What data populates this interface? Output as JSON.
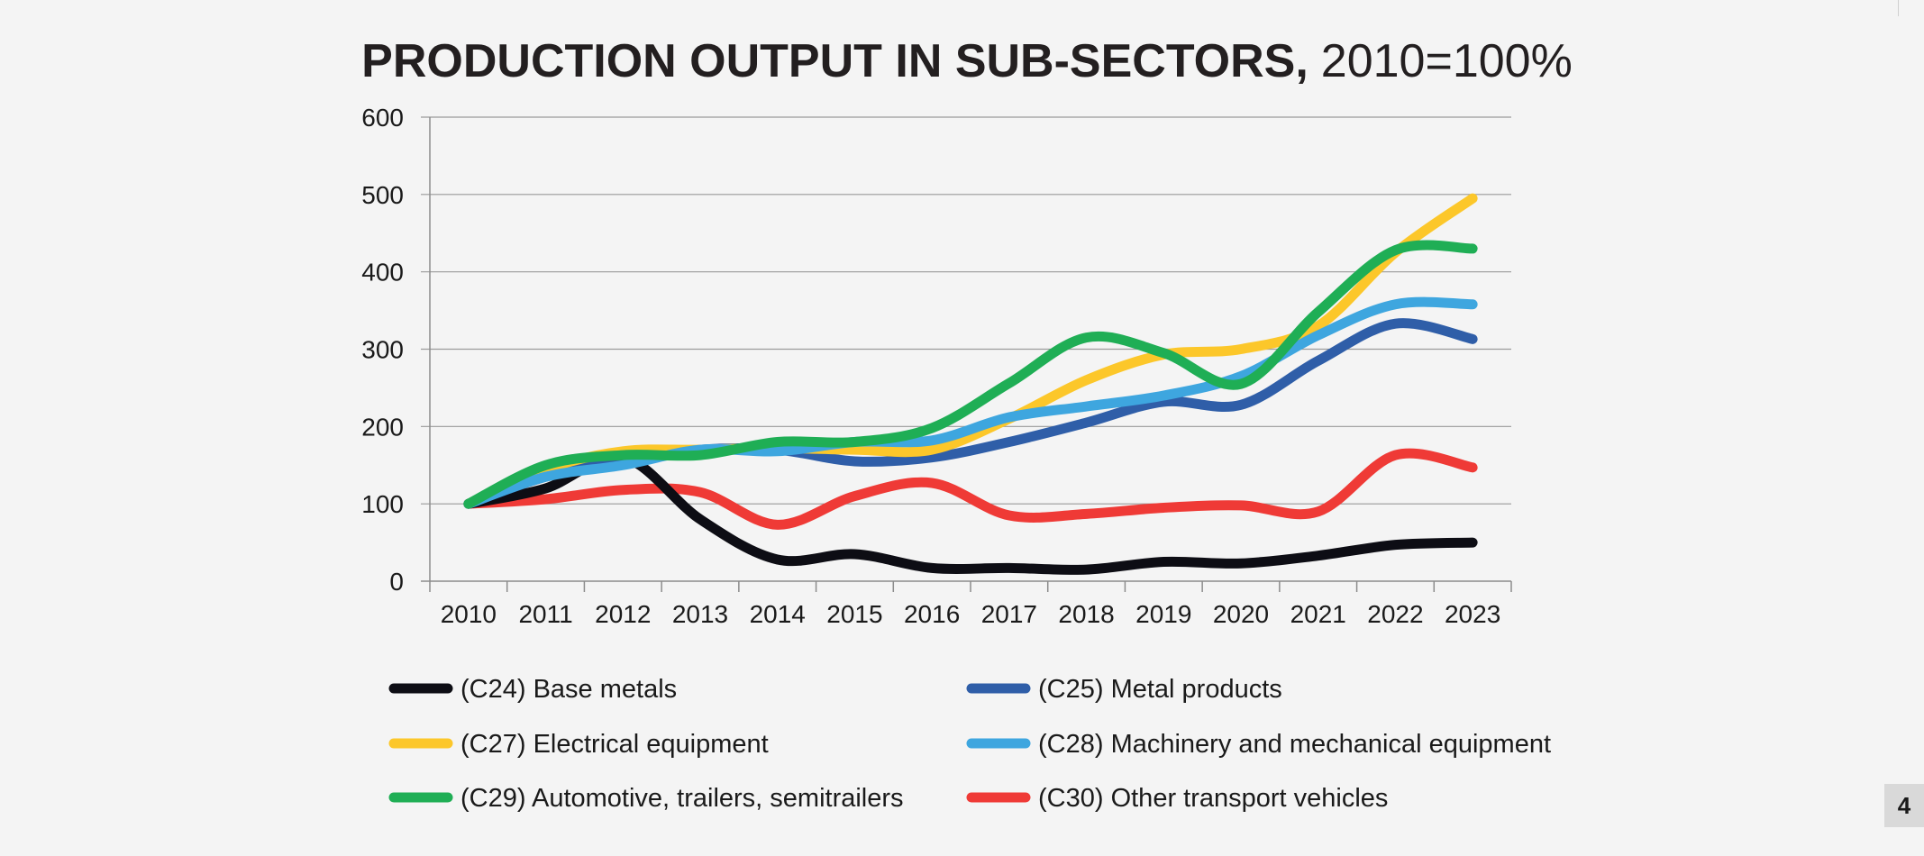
{
  "colors": {
    "background": "#f4f4f4",
    "grid": "#9a9a9a",
    "axis": "#8c8c8c"
  },
  "page": {
    "number": "4"
  },
  "chart_data": {
    "type": "line",
    "title": "PRODUCTION OUTPUT IN SUB-SECTORS,",
    "subtitle": "2010=100%",
    "xlabel": "",
    "ylabel": "",
    "x": [
      "2010",
      "2011",
      "2012",
      "2013",
      "2014",
      "2015",
      "2016",
      "2017",
      "2018",
      "2019",
      "2020",
      "2021",
      "2022",
      "2023"
    ],
    "ylim": [
      0,
      600
    ],
    "yticks": [
      0,
      100,
      200,
      300,
      400,
      500,
      600
    ],
    "grid": true,
    "legend_position": "bottom",
    "series": [
      {
        "name": "(C24) Base metals",
        "color": "#0d0d14",
        "values": [
          100,
          120,
          160,
          80,
          28,
          35,
          17,
          17,
          15,
          25,
          23,
          33,
          47,
          50
        ]
      },
      {
        "name": "(C25) Metal products",
        "color": "#2f5ea8",
        "values": [
          100,
          135,
          155,
          170,
          170,
          155,
          160,
          180,
          205,
          232,
          228,
          285,
          333,
          313
        ]
      },
      {
        "name": "(C27) Electrical equipment",
        "color": "#fcc72a",
        "values": [
          100,
          145,
          168,
          170,
          172,
          170,
          170,
          210,
          260,
          293,
          300,
          330,
          425,
          495
        ]
      },
      {
        "name": "(C28) Machinery and mechanical equipment",
        "color": "#3ea6df",
        "values": [
          100,
          135,
          150,
          170,
          168,
          180,
          182,
          212,
          226,
          240,
          265,
          318,
          358,
          358
        ]
      },
      {
        "name": "(C29) Automotive, trailers, semitrailers",
        "color": "#1fae55",
        "values": [
          100,
          150,
          163,
          163,
          180,
          180,
          198,
          256,
          315,
          295,
          255,
          348,
          428,
          430
        ]
      },
      {
        "name": "(C30) Other transport vehicles",
        "color": "#ef3a36",
        "values": [
          100,
          106,
          118,
          115,
          73,
          110,
          127,
          85,
          87,
          95,
          98,
          90,
          163,
          147
        ]
      }
    ]
  }
}
